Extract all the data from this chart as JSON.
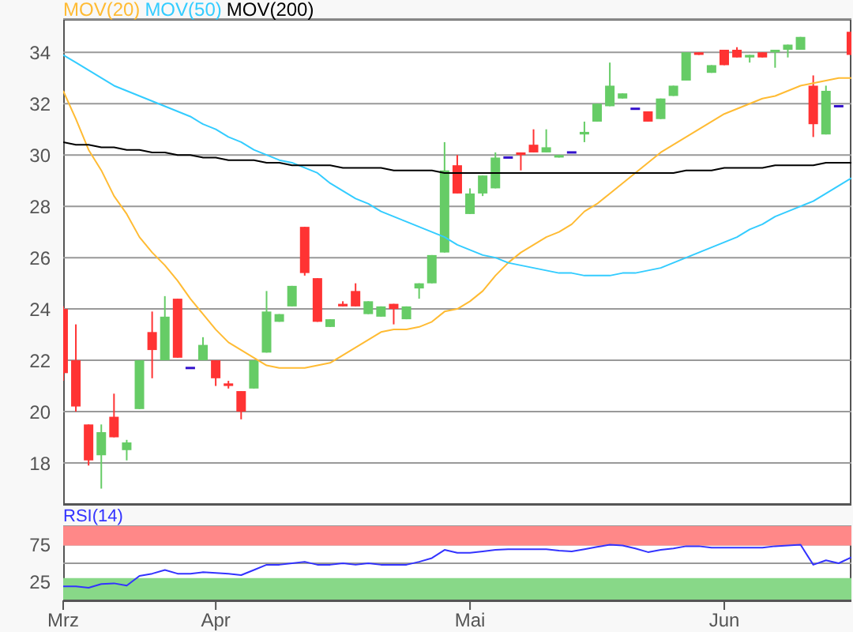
{
  "chart_data": [
    {
      "type": "candlestick",
      "categories": [
        null,
        null,
        null,
        null,
        null,
        null,
        null,
        null,
        null,
        null,
        null,
        null,
        null,
        null,
        null,
        null,
        null,
        null,
        null,
        null,
        null,
        null,
        null,
        null,
        null,
        null,
        null,
        null,
        null,
        null,
        null,
        null,
        null,
        null,
        null,
        null,
        null,
        null,
        null,
        null,
        null,
        null,
        null,
        null,
        null,
        null,
        null,
        null,
        null,
        null,
        null,
        null,
        null,
        null,
        null,
        null,
        null,
        null,
        null,
        null,
        null,
        null,
        null
      ],
      "ohlc": [
        [
          24.0,
          24.1,
          21.2,
          21.5
        ],
        [
          22.0,
          23.4,
          20.0,
          20.2
        ],
        [
          19.5,
          19.5,
          17.9,
          18.1
        ],
        [
          18.3,
          19.5,
          17.0,
          19.2
        ],
        [
          19.8,
          20.7,
          19.0,
          19.0
        ],
        [
          18.5,
          18.9,
          18.1,
          18.8
        ],
        [
          20.1,
          22.0,
          20.1,
          22.0
        ],
        [
          23.1,
          23.9,
          21.3,
          22.4
        ],
        [
          22.0,
          24.5,
          22.0,
          23.7
        ],
        [
          24.4,
          24.4,
          22.1,
          22.1
        ],
        [
          21.7,
          21.7,
          21.7,
          21.7
        ],
        [
          22.0,
          22.9,
          22.0,
          22.6
        ],
        [
          22.0,
          22.0,
          21.0,
          21.3
        ],
        [
          21.1,
          21.2,
          20.9,
          21.0
        ],
        [
          20.8,
          20.8,
          19.7,
          20.0
        ],
        [
          20.9,
          22.0,
          20.9,
          22.0
        ],
        [
          22.3,
          24.7,
          22.3,
          23.9
        ],
        [
          23.5,
          23.8,
          23.5,
          23.8
        ],
        [
          24.1,
          24.9,
          24.1,
          24.9
        ],
        [
          27.2,
          27.2,
          25.3,
          25.4
        ],
        [
          25.2,
          25.2,
          23.5,
          23.5
        ],
        [
          23.3,
          23.6,
          23.3,
          23.6
        ],
        [
          24.2,
          24.3,
          24.1,
          24.1
        ],
        [
          24.7,
          25.0,
          24.1,
          24.1
        ],
        [
          23.8,
          24.3,
          23.8,
          24.3
        ],
        [
          23.7,
          24.1,
          23.7,
          24.1
        ],
        [
          24.2,
          24.2,
          23.4,
          24.0
        ],
        [
          23.6,
          24.1,
          23.6,
          24.1
        ],
        [
          24.8,
          25.0,
          24.4,
          25.0
        ],
        [
          25.0,
          26.1,
          25.0,
          26.1
        ],
        [
          26.2,
          30.5,
          26.2,
          29.4
        ],
        [
          29.6,
          30.0,
          28.5,
          28.5
        ],
        [
          27.7,
          28.7,
          27.7,
          28.5
        ],
        [
          28.5,
          29.2,
          28.4,
          29.2
        ],
        [
          28.7,
          30.1,
          28.7,
          29.9
        ],
        [
          29.9,
          29.9,
          29.9,
          29.9
        ],
        [
          30.1,
          30.1,
          29.4,
          30.0
        ],
        [
          30.4,
          31.0,
          30.1,
          30.1
        ],
        [
          30.1,
          31.0,
          30.1,
          30.3
        ],
        [
          29.9,
          30.0,
          29.9,
          30.0
        ],
        [
          30.1,
          30.1,
          30.1,
          30.1
        ],
        [
          30.8,
          31.3,
          30.5,
          30.9
        ],
        [
          31.3,
          32.0,
          31.3,
          32.0
        ],
        [
          31.9,
          33.6,
          31.9,
          32.7
        ],
        [
          32.2,
          32.4,
          32.2,
          32.4
        ],
        [
          31.8,
          31.8,
          31.8,
          31.8
        ],
        [
          31.7,
          31.7,
          31.3,
          31.3
        ],
        [
          31.4,
          32.2,
          31.4,
          32.2
        ],
        [
          32.3,
          32.7,
          32.3,
          32.7
        ],
        [
          32.9,
          34.0,
          32.9,
          34.0
        ],
        [
          34.0,
          34.0,
          33.9,
          33.9
        ],
        [
          33.2,
          33.5,
          33.2,
          33.5
        ],
        [
          34.1,
          34.1,
          33.5,
          33.5
        ],
        [
          34.1,
          34.2,
          33.8,
          33.8
        ],
        [
          33.8,
          33.9,
          33.6,
          33.9
        ],
        [
          34.0,
          34.0,
          33.8,
          33.8
        ],
        [
          34.0,
          34.1,
          33.4,
          34.1
        ],
        [
          34.1,
          34.3,
          33.8,
          34.3
        ],
        [
          34.1,
          34.6,
          34.1,
          34.6
        ],
        [
          32.7,
          33.1,
          30.7,
          31.2
        ],
        [
          30.8,
          32.7,
          30.8,
          32.5
        ],
        [
          31.9,
          31.9,
          31.9,
          31.9
        ],
        [
          34.8,
          34.8,
          33.9,
          33.9
        ]
      ],
      "colors": [
        "#ff3333",
        "#ff3333",
        "#ff3333",
        "#66cc66",
        "#ff3333",
        "#66cc66",
        "#66cc66",
        "#ff3333",
        "#66cc66",
        "#ff3333",
        "#3311cc",
        "#66cc66",
        "#ff3333",
        "#ff3333",
        "#ff3333",
        "#66cc66",
        "#66cc66",
        "#66cc66",
        "#66cc66",
        "#ff3333",
        "#ff3333",
        "#66cc66",
        "#ff3333",
        "#ff3333",
        "#66cc66",
        "#66cc66",
        "#ff3333",
        "#66cc66",
        "#66cc66",
        "#66cc66",
        "#66cc66",
        "#ff3333",
        "#66cc66",
        "#66cc66",
        "#66cc66",
        "#3311cc",
        "#ff3333",
        "#ff3333",
        "#66cc66",
        "#66cc66",
        "#3311cc",
        "#66cc66",
        "#66cc66",
        "#66cc66",
        "#66cc66",
        "#3311cc",
        "#ff3333",
        "#66cc66",
        "#66cc66",
        "#66cc66",
        "#ff3333",
        "#66cc66",
        "#ff3333",
        "#ff3333",
        "#66cc66",
        "#ff3333",
        "#66cc66",
        "#66cc66",
        "#66cc66",
        "#ff3333",
        "#66cc66",
        "#3311cc",
        "#ff3333"
      ],
      "series": [
        {
          "type": "line",
          "name": "MOV(20)",
          "color": "#ffbb33",
          "values": [
            32.5,
            31.4,
            30.2,
            29.4,
            28.4,
            27.7,
            26.8,
            26.2,
            25.7,
            25.1,
            24.4,
            23.8,
            23.2,
            22.7,
            22.4,
            22.1,
            21.8,
            21.7,
            21.7,
            21.7,
            21.8,
            21.9,
            22.2,
            22.5,
            22.8,
            23.1,
            23.2,
            23.2,
            23.3,
            23.5,
            23.9,
            24.0,
            24.3,
            24.7,
            25.3,
            25.8,
            26.2,
            26.5,
            26.8,
            27.0,
            27.3,
            27.8,
            28.1,
            28.5,
            28.9,
            29.3,
            29.7,
            30.1,
            30.4,
            30.7,
            31.0,
            31.3,
            31.6,
            31.8,
            32.0,
            32.2,
            32.3,
            32.5,
            32.7,
            32.8,
            32.9,
            33.0,
            33.0
          ]
        },
        {
          "type": "line",
          "name": "MOV(50)",
          "color": "#33ccff",
          "values": [
            33.9,
            33.6,
            33.3,
            33.0,
            32.7,
            32.5,
            32.3,
            32.1,
            31.9,
            31.7,
            31.5,
            31.2,
            31.0,
            30.7,
            30.5,
            30.2,
            30.0,
            29.8,
            29.7,
            29.5,
            29.3,
            28.9,
            28.6,
            28.3,
            28.1,
            27.8,
            27.6,
            27.4,
            27.2,
            27.0,
            26.8,
            26.5,
            26.3,
            26.1,
            26.0,
            25.8,
            25.7,
            25.6,
            25.5,
            25.4,
            25.4,
            25.3,
            25.3,
            25.3,
            25.4,
            25.4,
            25.5,
            25.6,
            25.8,
            26.0,
            26.2,
            26.4,
            26.6,
            26.8,
            27.1,
            27.3,
            27.6,
            27.8,
            28.0,
            28.2,
            28.5,
            28.8,
            29.1
          ]
        },
        {
          "type": "line",
          "name": "MOV(200)",
          "color": "#000000",
          "values": [
            30.5,
            30.4,
            30.4,
            30.3,
            30.3,
            30.2,
            30.2,
            30.1,
            30.1,
            30.0,
            30.0,
            29.9,
            29.9,
            29.8,
            29.8,
            29.8,
            29.7,
            29.7,
            29.6,
            29.6,
            29.6,
            29.6,
            29.5,
            29.5,
            29.5,
            29.5,
            29.4,
            29.4,
            29.4,
            29.4,
            29.3,
            29.3,
            29.3,
            29.3,
            29.3,
            29.3,
            29.3,
            29.3,
            29.3,
            29.3,
            29.3,
            29.3,
            29.3,
            29.3,
            29.3,
            29.3,
            29.3,
            29.3,
            29.3,
            29.4,
            29.4,
            29.4,
            29.5,
            29.5,
            29.5,
            29.5,
            29.6,
            29.6,
            29.6,
            29.6,
            29.7,
            29.7,
            29.7
          ]
        }
      ],
      "ylim": [
        16.4,
        35.3
      ],
      "yticks": [
        18,
        20,
        22,
        24,
        26,
        28,
        30,
        32,
        34
      ],
      "grid": "y",
      "legend": "top left",
      "tick_labels": "y"
    },
    {
      "type": "line",
      "title": "RSI(14)",
      "categories": [
        "Mrz",
        null,
        null,
        null,
        null,
        null,
        null,
        null,
        null,
        null,
        null,
        null,
        "Apr",
        null,
        null,
        null,
        null,
        null,
        null,
        null,
        null,
        null,
        null,
        null,
        null,
        null,
        null,
        null,
        null,
        null,
        null,
        null,
        "Mai",
        null,
        null,
        null,
        null,
        null,
        null,
        null,
        null,
        null,
        null,
        null,
        null,
        null,
        null,
        null,
        null,
        null,
        null,
        null,
        "Jun",
        null,
        null,
        null,
        null,
        null,
        null,
        null,
        null,
        null,
        null
      ],
      "series": [
        {
          "color": "#3333ff",
          "values": [
            19,
            19,
            17,
            22,
            23,
            20,
            33,
            36,
            41,
            36,
            36,
            38,
            37,
            36,
            34,
            41,
            48,
            48,
            50,
            52,
            48,
            48,
            50,
            48,
            50,
            48,
            48,
            48,
            52,
            57,
            68,
            64,
            64,
            66,
            68,
            69,
            69,
            69,
            69,
            67,
            66,
            69,
            72,
            75,
            74,
            70,
            65,
            68,
            70,
            73,
            73,
            71,
            71,
            71,
            71,
            71,
            73,
            74,
            75,
            48,
            54,
            50,
            58
          ]
        }
      ],
      "ylim": [
        0,
        100
      ],
      "yticks": [
        25,
        75
      ],
      "grid": "y",
      "bands": [
        {
          "axis": "y",
          "from": 74,
          "to": 100,
          "color": "#ff8888"
        },
        {
          "axis": "y",
          "from": 0,
          "to": 30,
          "color": "#88d888"
        }
      ],
      "ref_lines": [
        {
          "axis": "y",
          "value": 50,
          "color": "#999999"
        }
      ]
    }
  ]
}
